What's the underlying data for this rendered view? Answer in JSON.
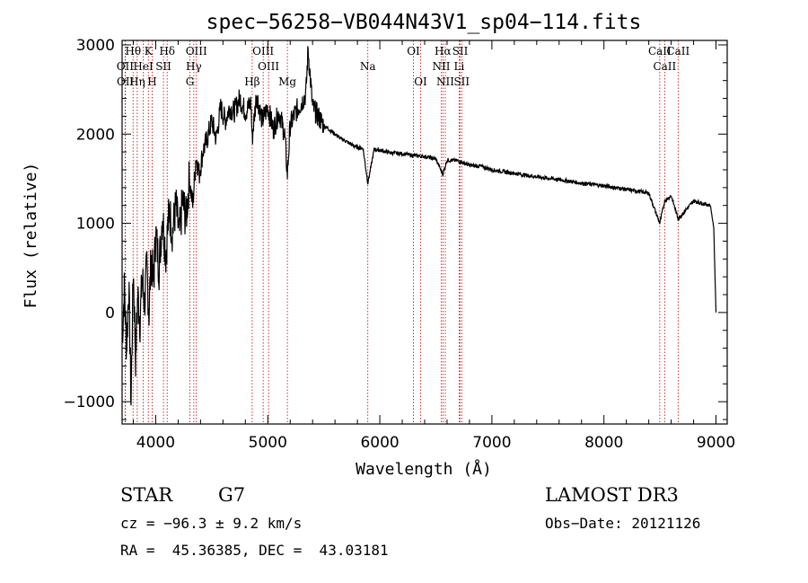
{
  "chart_data": {
    "type": "line",
    "title": "spec−56258−VB044N43V1_sp04−114.fits",
    "xlabel": "Wavelength (Å)",
    "ylabel": "Flux (relative)",
    "xlim": [
      3700,
      9100
    ],
    "ylim": [
      -1250,
      3050
    ],
    "xticks": [
      4000,
      5000,
      6000,
      7000,
      8000,
      9000
    ],
    "xtick_labels": [
      "4000",
      "5000",
      "6000",
      "7000",
      "8000",
      "9000"
    ],
    "yticks": [
      -1000,
      0,
      1000,
      2000,
      3000
    ],
    "ytick_labels": [
      "−1000",
      "0",
      "1000",
      "2000",
      "3000"
    ],
    "grid": false,
    "spectrum": {
      "x": [
        3700,
        3720,
        3740,
        3760,
        3780,
        3800,
        3820,
        3840,
        3860,
        3880,
        3900,
        3920,
        3940,
        3960,
        3980,
        4000,
        4030,
        4060,
        4090,
        4120,
        4150,
        4180,
        4210,
        4240,
        4270,
        4300,
        4330,
        4360,
        4390,
        4420,
        4460,
        4500,
        4540,
        4580,
        4620,
        4660,
        4700,
        4750,
        4800,
        4850,
        4861,
        4900,
        4950,
        5000,
        5050,
        5100,
        5150,
        5175,
        5200,
        5250,
        5300,
        5340,
        5360,
        5400,
        5450,
        5500,
        5550,
        5600,
        5650,
        5700,
        5750,
        5800,
        5850,
        5893,
        5950,
        6000,
        6100,
        6200,
        6300,
        6400,
        6500,
        6563,
        6600,
        6700,
        6800,
        6900,
        7000,
        7200,
        7400,
        7600,
        7800,
        8000,
        8200,
        8400,
        8498,
        8542,
        8600,
        8662,
        8800,
        8950,
        8980,
        9000
      ],
      "y": [
        -300,
        250,
        -400,
        300,
        -1000,
        500,
        -500,
        200,
        -100,
        400,
        100,
        500,
        0,
        650,
        300,
        900,
        500,
        1100,
        650,
        1150,
        900,
        1200,
        850,
        1250,
        1050,
        1500,
        1200,
        1750,
        1550,
        1800,
        1950,
        2150,
        1950,
        2300,
        2150,
        2300,
        2250,
        2400,
        2250,
        2350,
        1950,
        2450,
        2150,
        2300,
        2050,
        2250,
        2000,
        1550,
        2100,
        2250,
        2350,
        2450,
        2950,
        2300,
        2200,
        2100,
        2050,
        2000,
        1950,
        1920,
        1880,
        1850,
        1840,
        1450,
        1830,
        1820,
        1790,
        1780,
        1760,
        1750,
        1720,
        1550,
        1710,
        1700,
        1650,
        1640,
        1600,
        1560,
        1520,
        1490,
        1450,
        1420,
        1380,
        1340,
        1000,
        1250,
        1310,
        1050,
        1250,
        1200,
        950,
        0
      ]
    },
    "lines": [
      {
        "label": "Hθ",
        "wavelength": 3798
      },
      {
        "label": "K",
        "wavelength": 3934
      },
      {
        "label": "Hδ",
        "wavelength": 4102
      },
      {
        "label": "OIII",
        "wavelength": 4363
      },
      {
        "label": "OIII",
        "wavelength": 4959
      },
      {
        "label": "OI",
        "wavelength": 6300
      },
      {
        "label": "Hα",
        "wavelength": 6563
      },
      {
        "label": "SII",
        "wavelength": 6717
      },
      {
        "label": "CaII",
        "wavelength": 8498
      },
      {
        "label": "OII",
        "wavelength": 3727
      },
      {
        "label": "HeI",
        "wavelength": 3889
      },
      {
        "label": "SII",
        "wavelength": 4069
      },
      {
        "label": "Hγ",
        "wavelength": 4340
      },
      {
        "label": "OIII",
        "wavelength": 5007
      },
      {
        "label": "Na",
        "wavelength": 5893
      },
      {
        "label": "NII",
        "wavelength": 6548
      },
      {
        "label": "Li",
        "wavelength": 6708
      },
      {
        "label": "CaII",
        "wavelength": 8542
      },
      {
        "label": "OII",
        "wavelength": 3729
      },
      {
        "label": "Hη",
        "wavelength": 3835
      },
      {
        "label": "H",
        "wavelength": 3968
      },
      {
        "label": "G",
        "wavelength": 4305
      },
      {
        "label": "Hβ",
        "wavelength": 4861
      },
      {
        "label": "Mg",
        "wavelength": 5175
      },
      {
        "label": "OI",
        "wavelength": 6364
      },
      {
        "label": "NII",
        "wavelength": 6584
      },
      {
        "label": "SII",
        "wavelength": 6731
      },
      {
        "label": "CaII",
        "wavelength": 8662
      }
    ]
  },
  "info": {
    "class": "STAR",
    "subclass": "G7",
    "survey": "LAMOST DR3",
    "cz": "cz = −96.3 ± 9.2 km/s",
    "obs_date": "Obs−Date: 20121126",
    "coords": "RA =  45.36385, DEC =  43.03181"
  },
  "colors": {
    "spectrum": "#000000",
    "line_marker": "#c00000",
    "axis": "#000000"
  }
}
